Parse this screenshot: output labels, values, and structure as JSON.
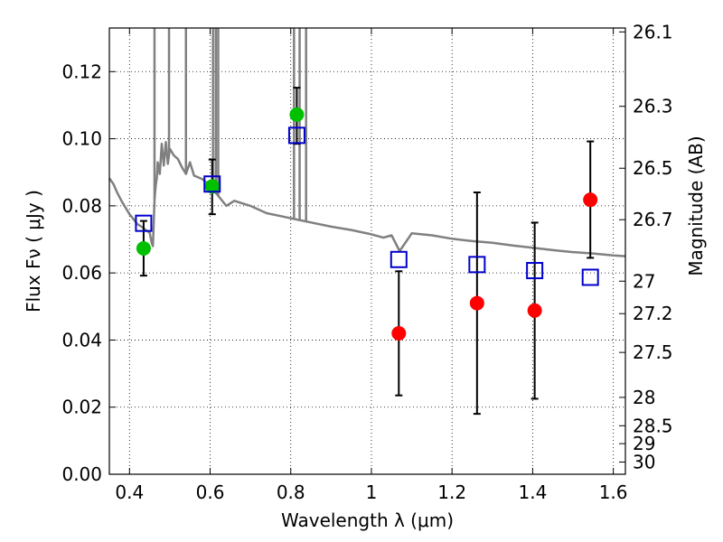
{
  "chart_data": {
    "type": "scatter",
    "title": "",
    "xlabel": "Wavelength  λ (μm)",
    "ylabel": "Flux  Fν  ( μJy )",
    "y2label": "Magnitude (AB)",
    "xlim": [
      0.35,
      1.63
    ],
    "ylim": [
      0.0,
      0.133
    ],
    "grid": true,
    "xticks": [
      0.4,
      0.6,
      0.8,
      1.0,
      1.2,
      1.4,
      1.6
    ],
    "xtick_labels": [
      "0.4",
      "0.6",
      "0.8",
      "1",
      "1.2",
      "1.4",
      "1.6"
    ],
    "yticks": [
      0.0,
      0.02,
      0.04,
      0.06,
      0.08,
      0.1,
      0.12
    ],
    "ytick_labels": [
      "0.00",
      "0.02",
      "0.04",
      "0.06",
      "0.08",
      "0.10",
      "0.12"
    ],
    "y2ticks": [
      {
        "mag": 26.1,
        "label": "26.1"
      },
      {
        "mag": 26.3,
        "label": "26.3"
      },
      {
        "mag": 26.5,
        "label": "26.5"
      },
      {
        "mag": 26.7,
        "label": "26.7"
      },
      {
        "mag": 27.0,
        "label": "27"
      },
      {
        "mag": 27.2,
        "label": "27.2"
      },
      {
        "mag": 27.5,
        "label": "27.5"
      },
      {
        "mag": 28.0,
        "label": "28"
      },
      {
        "mag": 28.5,
        "label": "28.5"
      },
      {
        "mag": 29.0,
        "label": "29"
      },
      {
        "mag": 30.0,
        "label": "30"
      }
    ],
    "series": [
      {
        "kind": "points",
        "marker": "circle",
        "color": "#00c000",
        "x": [
          0.435,
          0.605,
          0.815
        ],
        "y": [
          0.0673,
          0.0858,
          0.1072
        ],
        "yerr_low": [
          0.0592,
          0.0775,
          0.0985
        ],
        "yerr_high": [
          0.0755,
          0.0938,
          0.1152
        ]
      },
      {
        "kind": "points",
        "marker": "circle",
        "color": "#ff0000",
        "x": [
          1.068,
          1.262,
          1.405,
          1.543
        ],
        "y": [
          0.042,
          0.051,
          0.0488,
          0.0818
        ],
        "yerr_low": [
          0.0235,
          0.018,
          0.0225,
          0.0645
        ],
        "yerr_high": [
          0.0605,
          0.084,
          0.075,
          0.0992
        ]
      },
      {
        "kind": "points",
        "marker": "open-square",
        "color": "#0000cc",
        "x": [
          0.435,
          0.605,
          0.815,
          1.068,
          1.262,
          1.405,
          1.543
        ],
        "y": [
          0.0748,
          0.0865,
          0.101,
          0.064,
          0.0625,
          0.0607,
          0.0587
        ]
      },
      {
        "kind": "line",
        "color": "#808080",
        "x": [
          0.35,
          0.36,
          0.37,
          0.38,
          0.39,
          0.4,
          0.41,
          0.42,
          0.43,
          0.44,
          0.45,
          0.455,
          0.458,
          0.462,
          0.465,
          0.468,
          0.47,
          0.475,
          0.48,
          0.485,
          0.49,
          0.495,
          0.5,
          0.51,
          0.52,
          0.53,
          0.54,
          0.55,
          0.56,
          0.58,
          0.6,
          0.62,
          0.64,
          0.66,
          0.7,
          0.74,
          0.78,
          0.82,
          0.86,
          0.9,
          0.95,
          1.0,
          1.03,
          1.05,
          1.07,
          1.1,
          1.15,
          1.2,
          1.25,
          1.3,
          1.35,
          1.4,
          1.45,
          1.5,
          1.55,
          1.6,
          1.63
        ],
        "y": [
          0.0882,
          0.0865,
          0.0838,
          0.0815,
          0.0795,
          0.0775,
          0.076,
          0.0745,
          0.0738,
          0.0728,
          0.072,
          0.069,
          0.068,
          0.082,
          0.086,
          0.0885,
          0.093,
          0.0895,
          0.0985,
          0.092,
          0.099,
          0.0925,
          0.097,
          0.095,
          0.094,
          0.0915,
          0.0895,
          0.093,
          0.089,
          0.088,
          0.086,
          0.083,
          0.08,
          0.0815,
          0.08,
          0.0778,
          0.0768,
          0.0758,
          0.0748,
          0.0738,
          0.0728,
          0.0715,
          0.0705,
          0.0712,
          0.0665,
          0.0718,
          0.0712,
          0.0702,
          0.0695,
          0.069,
          0.0682,
          0.0675,
          0.0668,
          0.0662,
          0.0658,
          0.0652,
          0.065
        ],
        "spikes": [
          {
            "x": 0.462,
            "y_top": 0.133
          },
          {
            "x": 0.498,
            "y_top": 0.133
          },
          {
            "x": 0.54,
            "y_top": 0.133
          },
          {
            "x": 0.607,
            "y_top": 0.133
          },
          {
            "x": 0.614,
            "y_top": 0.133
          },
          {
            "x": 0.62,
            "y_top": 0.133
          },
          {
            "x": 0.808,
            "y_top": 0.133
          },
          {
            "x": 0.822,
            "y_top": 0.133
          },
          {
            "x": 0.838,
            "y_top": 0.133
          }
        ]
      }
    ]
  }
}
